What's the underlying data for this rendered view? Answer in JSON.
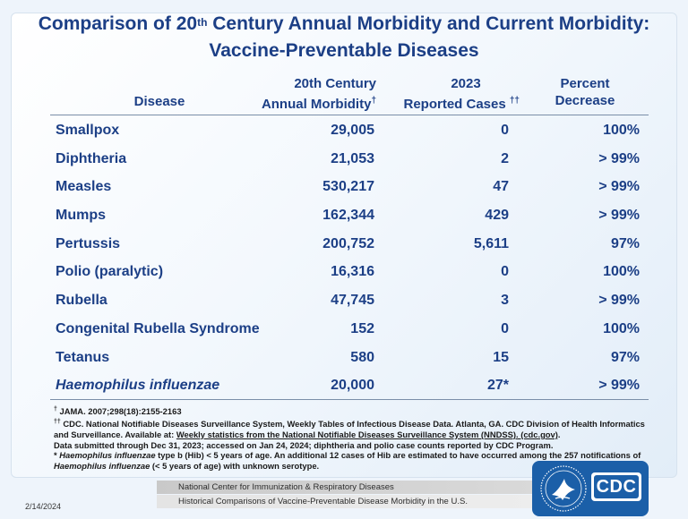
{
  "title": {
    "line1_pre": "Comparison of 20",
    "line1_sup": "th",
    "line1_post": " Century Annual Morbidity and Current Morbidity:",
    "line2": "Vaccine-Preventable Diseases"
  },
  "table": {
    "headers": {
      "disease": "Disease",
      "morbidity_line1": "20th Century",
      "morbidity_line2": "Annual Morbidity",
      "morbidity_mark": "†",
      "cases_line1": "2023",
      "cases_line2": "Reported Cases ",
      "cases_mark": "††",
      "pct_line1": "Percent",
      "pct_line2": "Decrease"
    },
    "rows": [
      {
        "disease": "Smallpox",
        "morbidity": "29,005",
        "cases": "0",
        "pct": "100%"
      },
      {
        "disease": "Diphtheria",
        "morbidity": "21,053",
        "cases": "2",
        "pct": "> 99%"
      },
      {
        "disease": "Measles",
        "morbidity": "530,217",
        "cases": "47",
        "pct": "> 99%"
      },
      {
        "disease": "Mumps",
        "morbidity": "162,344",
        "cases": "429",
        "pct": "> 99%"
      },
      {
        "disease": "Pertussis",
        "morbidity": "200,752",
        "cases": "5,611",
        "pct": "97%"
      },
      {
        "disease": "Polio (paralytic)",
        "morbidity": "16,316",
        "cases": "0",
        "pct": "100%"
      },
      {
        "disease": "Rubella",
        "morbidity": "47,745",
        "cases": "3",
        "pct": "> 99%"
      },
      {
        "disease": "Congenital Rubella Syndrome",
        "morbidity": "152",
        "cases": "0",
        "pct": "100%"
      },
      {
        "disease": "Tetanus",
        "morbidity": "580",
        "cases": "15",
        "pct": "97%"
      },
      {
        "disease": "Haemophilus influenzae",
        "morbidity": "20,000",
        "cases": "27*",
        "pct": "> 99%"
      }
    ]
  },
  "notes": {
    "n1_mark": "†",
    "n1": " JAMA. 2007;298(18):2155-2163",
    "n2_mark": "††",
    "n2_a": " CDC. National Notifiable Diseases Surveillance System, Weekly Tables of Infectious Disease Data. Atlanta, GA. CDC Division of Health Informatics and Surveillance. Available at: ",
    "n2_link": "Weekly statistics from the National Notifiable Diseases Surveillance System (NNDSS). (cdc.gov)",
    "n2_b": ".",
    "n3": "Data submitted through Dec 31, 2023; accessed on Jan 24, 2024; diphtheria and polio case counts reported by CDC Program.",
    "n4_star": "* ",
    "n4_it1": "Haemophilus influenzae",
    "n4_mid": " type b (Hib) < 5 years of age.  An additional 12 cases of Hib are estimated to have occurred among the 257 notifications of ",
    "n4_it2": "Haemophilus influenzae",
    "n4_end": " (< 5 years of age) with unknown serotype."
  },
  "footer": {
    "band1": "National Center for Immunization & Respiratory Diseases",
    "band2": "Historical Comparisons of Vaccine-Preventable Disease Morbidity in the U.S.",
    "date": "2/14/2024",
    "logo_text": "CDC"
  },
  "colors": {
    "title_blue": "#1c3f86",
    "logo_blue": "#1b5fa8"
  }
}
